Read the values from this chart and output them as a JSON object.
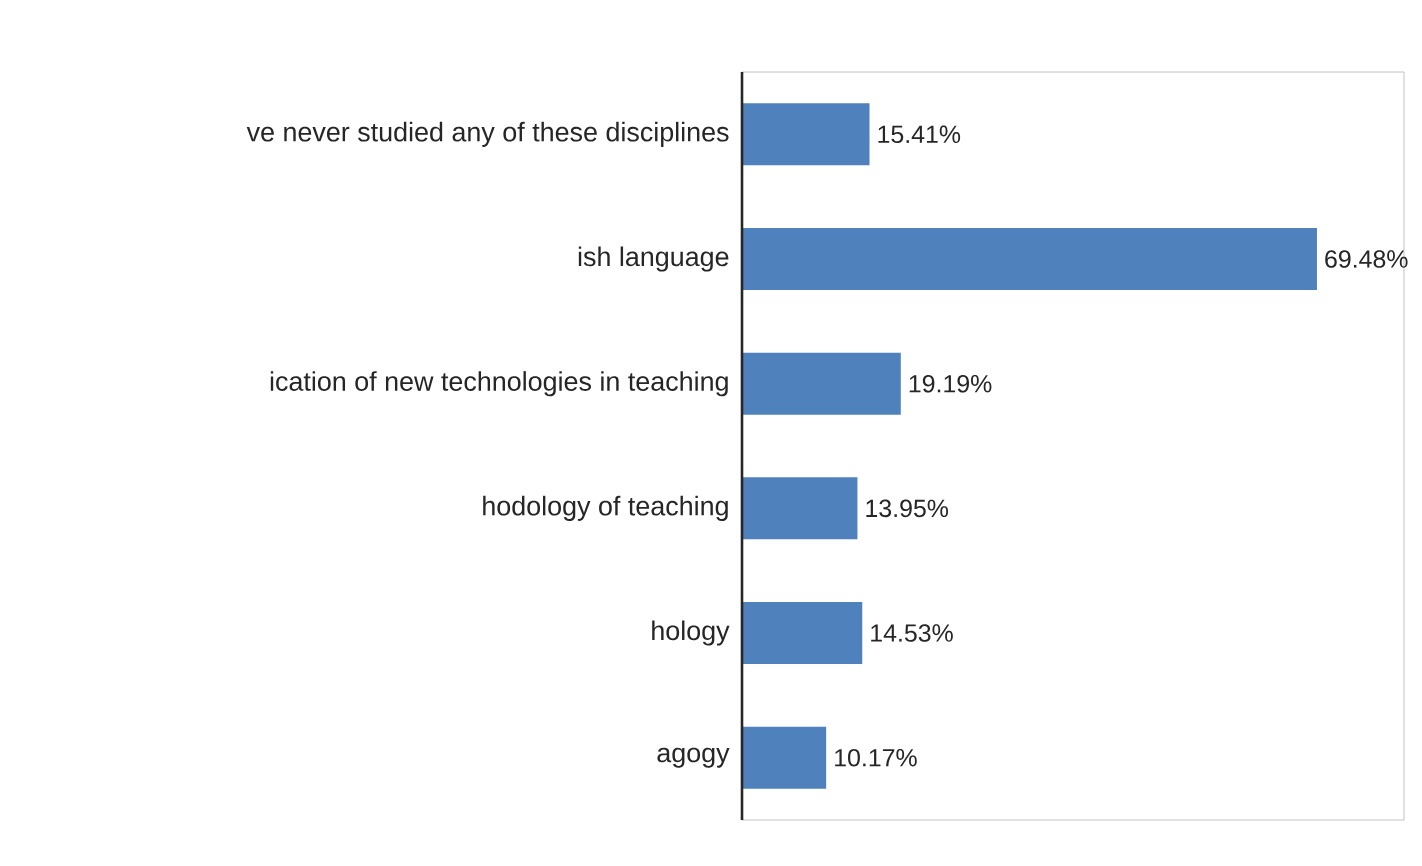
{
  "chart_data": {
    "type": "bar",
    "orientation": "horizontal",
    "categories": [
      "ve never studied any of these disciplines",
      "ish language",
      "ication of new technologies in teaching",
      "hodology of teaching",
      "hology",
      "agogy"
    ],
    "values": [
      15.41,
      69.48,
      19.19,
      13.95,
      14.53,
      10.17
    ],
    "value_labels": [
      "15.41%",
      "69.48%",
      "19.19%",
      "13.95%",
      "14.53%",
      "10.17%"
    ],
    "color": "#4f81bd",
    "xlim": [
      0,
      80
    ],
    "tick_labels": "y"
  }
}
